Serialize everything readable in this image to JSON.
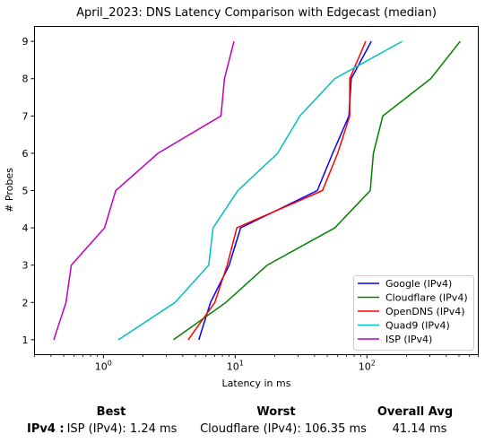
{
  "chart_data": {
    "type": "line",
    "title": "April_2023: DNS Latency Comparison with Edgecast (median)",
    "xlabel": "Latency in ms",
    "ylabel": "# Probes",
    "xscale": "log",
    "xlim": [
      0.3,
      700
    ],
    "ylim": [
      0.6,
      9.4
    ],
    "x_ticks": [
      1,
      10,
      100
    ],
    "x_tick_labels": [
      "10^0",
      "10^1",
      "10^2"
    ],
    "y_ticks": [
      1,
      2,
      3,
      4,
      5,
      6,
      7,
      8,
      9
    ],
    "y_tick_labels": [
      "1",
      "2",
      "3",
      "4",
      "5",
      "6",
      "7",
      "8",
      "9"
    ],
    "grid": false,
    "legend_position": "lower-right",
    "series": [
      {
        "name": "Google (IPv4)",
        "color": "#0000ff",
        "x": [
          5.3,
          6.5,
          9.0,
          11.0,
          42.0,
          55.0,
          73.0,
          76.0,
          108.0
        ],
        "y": [
          1,
          2,
          3,
          4,
          5,
          6,
          7,
          8,
          9
        ]
      },
      {
        "name": "Cloudflare (IPv4)",
        "color": "#008000",
        "x": [
          3.4,
          8.5,
          17.5,
          57.0,
          106.0,
          112.0,
          132.0,
          305.0,
          510.0
        ],
        "y": [
          1,
          2,
          3,
          4,
          5,
          6,
          7,
          8,
          9
        ]
      },
      {
        "name": "OpenDNS (IPv4)",
        "color": "#ff0000",
        "x": [
          4.4,
          7.0,
          8.7,
          10.3,
          46.0,
          60.0,
          74.0,
          74.0,
          98.0
        ],
        "y": [
          1,
          2,
          3,
          4,
          5,
          6,
          7,
          8,
          9
        ]
      },
      {
        "name": "Quad9 (IPv4)",
        "color": "#00bfbf",
        "x": [
          1.3,
          3.5,
          6.3,
          6.8,
          10.5,
          21.0,
          31.0,
          57.0,
          185.0
        ],
        "y": [
          1,
          2,
          3,
          4,
          5,
          6,
          7,
          8,
          9
        ]
      },
      {
        "name": "ISP (IPv4)",
        "color": "#bf00bf",
        "x": [
          0.42,
          0.52,
          0.57,
          1.02,
          1.24,
          2.6,
          7.8,
          8.3,
          9.8
        ],
        "y": [
          1,
          2,
          3,
          4,
          5,
          6,
          7,
          8,
          9
        ]
      }
    ]
  },
  "summary": {
    "headers": {
      "best": "Best",
      "worst": "Worst",
      "avg": "Overall Avg"
    },
    "row_label": "IPv4 :",
    "best": "ISP (IPv4): 1.24 ms",
    "worst": "Cloudflare (IPv4): 106.35 ms",
    "avg": "41.14 ms"
  }
}
